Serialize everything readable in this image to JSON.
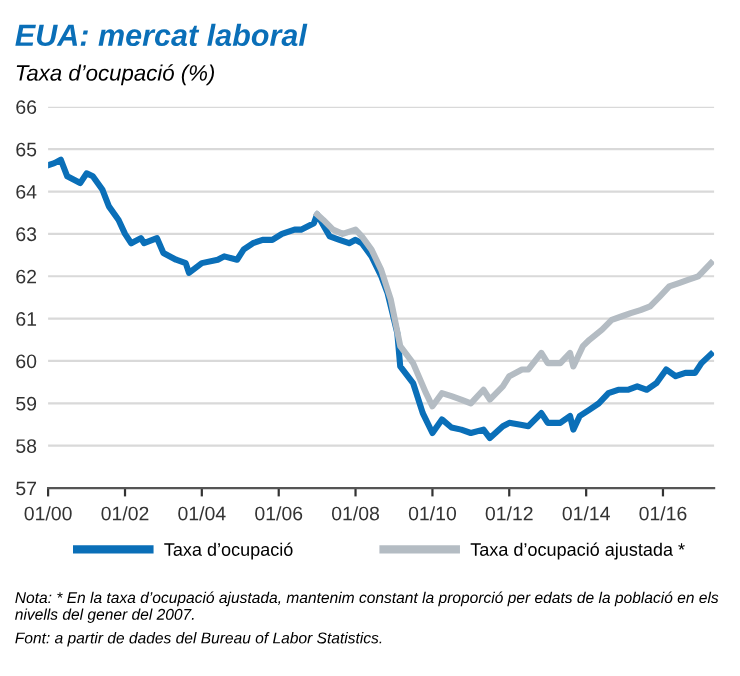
{
  "chart_data": {
    "type": "line",
    "title": "EUA: mercat laboral",
    "subtitle": "Taxa d’ocupació (%)",
    "xlim": [
      "2000-01",
      "2017-05"
    ],
    "xticks": [
      {
        "value": "2000-01",
        "label": "01/00"
      },
      {
        "value": "2002-01",
        "label": "01/02"
      },
      {
        "value": "2004-01",
        "label": "01/04"
      },
      {
        "value": "2006-01",
        "label": "01/06"
      },
      {
        "value": "2008-01",
        "label": "01/08"
      },
      {
        "value": "2010-01",
        "label": "01/10"
      },
      {
        "value": "2012-01",
        "label": "01/12"
      },
      {
        "value": "2014-01",
        "label": "01/14"
      },
      {
        "value": "2016-01",
        "label": "01/16"
      }
    ],
    "ylim": [
      57,
      66
    ],
    "yticks": [
      57,
      58,
      59,
      60,
      61,
      62,
      63,
      64,
      65,
      66
    ],
    "grid": "y",
    "legend": "bottom",
    "marker": "none",
    "line_style": "solid",
    "series": [
      {
        "name": "Taxa d’ocupació",
        "color": "#0a6fb8",
        "x": [
          "2000-01",
          "2000-03",
          "2000-05",
          "2000-07",
          "2000-11",
          "2001-01",
          "2001-03",
          "2001-06",
          "2001-08",
          "2001-11",
          "2002-01",
          "2002-03",
          "2002-06",
          "2002-07",
          "2002-11",
          "2003-01",
          "2003-05",
          "2003-08",
          "2003-09",
          "2004-01",
          "2004-06",
          "2004-08",
          "2004-12",
          "2005-02",
          "2005-05",
          "2005-08",
          "2005-11",
          "2006-02",
          "2006-06",
          "2006-08",
          "2006-12",
          "2007-01",
          "2007-05",
          "2007-08",
          "2007-11",
          "2008-01",
          "2008-03",
          "2008-06",
          "2008-09",
          "2008-11",
          "2009-02",
          "2009-03",
          "2009-07",
          "2009-10",
          "2010-01",
          "2010-04",
          "2010-07",
          "2010-10",
          "2011-01",
          "2011-05",
          "2011-07",
          "2011-11",
          "2012-01",
          "2012-05",
          "2012-07",
          "2012-11",
          "2013-01",
          "2013-05",
          "2013-08",
          "2013-09",
          "2013-11",
          "2014-02",
          "2014-05",
          "2014-08",
          "2014-11",
          "2015-02",
          "2015-05",
          "2015-08",
          "2015-11",
          "2016-02",
          "2016-05",
          "2016-08",
          "2016-11",
          "2017-01",
          "2017-04"
        ],
        "values": [
          64.62,
          64.67,
          64.75,
          64.36,
          64.2,
          64.43,
          64.36,
          64.04,
          63.65,
          63.33,
          63.0,
          62.78,
          62.9,
          62.78,
          62.9,
          62.55,
          62.39,
          62.31,
          62.08,
          62.31,
          62.39,
          62.47,
          62.39,
          62.63,
          62.78,
          62.86,
          62.86,
          63.0,
          63.1,
          63.1,
          63.25,
          63.46,
          62.94,
          62.86,
          62.78,
          62.86,
          62.78,
          62.47,
          62.0,
          61.6,
          60.66,
          59.87,
          59.48,
          58.77,
          58.3,
          58.62,
          58.43,
          58.38,
          58.3,
          58.38,
          58.18,
          58.46,
          58.54,
          58.49,
          58.46,
          58.77,
          58.54,
          58.54,
          58.7,
          58.38,
          58.7,
          58.85,
          59.0,
          59.24,
          59.32,
          59.32,
          59.4,
          59.32,
          59.48,
          59.8,
          59.64,
          59.72,
          59.72,
          59.95,
          60.16
        ]
      },
      {
        "name": "Taxa d’ocupació ajustada *",
        "color": "#b4bcc3",
        "x": [
          "2007-01",
          "2007-03",
          "2007-06",
          "2007-09",
          "2008-01",
          "2008-03",
          "2008-06",
          "2008-09",
          "2008-12",
          "2009-03",
          "2009-07",
          "2009-11",
          "2010-01",
          "2010-04",
          "2010-07",
          "2010-10",
          "2011-01",
          "2011-05",
          "2011-07",
          "2011-11",
          "2012-01",
          "2012-05",
          "2012-07",
          "2012-11",
          "2013-01",
          "2013-05",
          "2013-08",
          "2013-09",
          "2013-12",
          "2014-02",
          "2014-06",
          "2014-09",
          "2014-12",
          "2015-03",
          "2015-06",
          "2015-09",
          "2015-12",
          "2016-03",
          "2016-06",
          "2016-09",
          "2016-12",
          "2017-04"
        ],
        "values": [
          63.46,
          63.33,
          63.1,
          63.0,
          63.1,
          62.94,
          62.63,
          62.15,
          61.45,
          60.35,
          59.95,
          59.24,
          58.93,
          59.24,
          59.17,
          59.09,
          59.0,
          59.32,
          59.09,
          59.4,
          59.64,
          59.8,
          59.8,
          60.19,
          59.95,
          59.95,
          60.19,
          59.87,
          60.35,
          60.5,
          60.74,
          60.97,
          61.05,
          61.13,
          61.2,
          61.29,
          61.52,
          61.76,
          61.84,
          61.92,
          62.0,
          62.31
        ]
      }
    ],
    "annotations": [
      "Nota: * En la taxa d’ocupació ajustada, mantenim constant la proporció per edats de la població en els nivells del gener del 2007.",
      "Font: a partir de dades del Bureau of Labor Statistics."
    ]
  }
}
